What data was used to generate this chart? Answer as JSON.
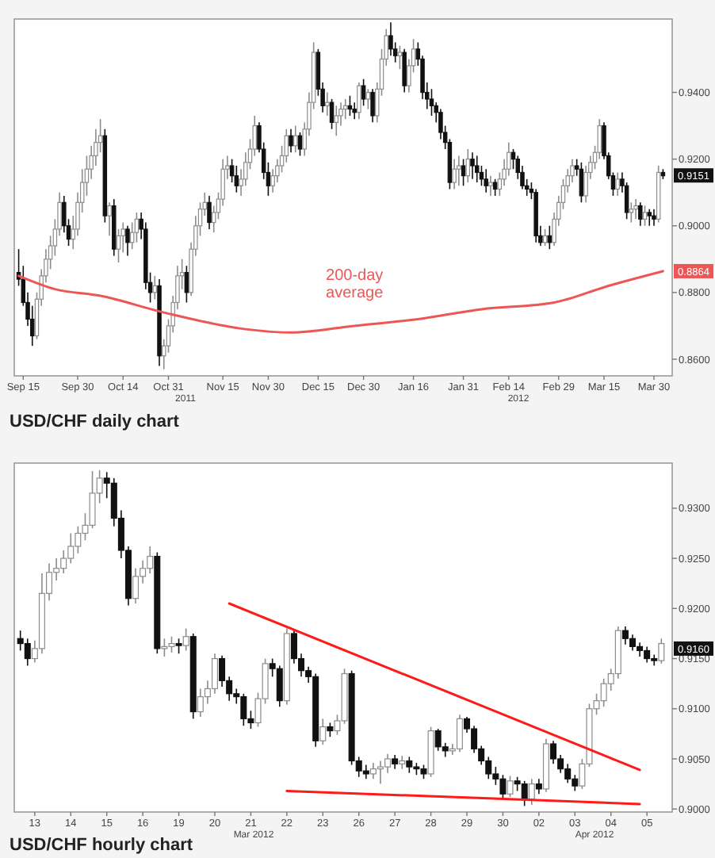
{
  "chart_data": [
    {
      "type": "candlestick",
      "categories": [
        null,
        "Sep 15",
        null,
        null,
        null,
        null,
        null,
        null,
        null,
        null,
        null,
        null,
        null,
        "Sep 30",
        null,
        null,
        null,
        null,
        null,
        null,
        null,
        null,
        null,
        "Oct 14",
        null,
        null,
        null,
        null,
        null,
        null,
        null,
        null,
        null,
        "Oct 31",
        null,
        null,
        null,
        null,
        null,
        null,
        null,
        null,
        null,
        null,
        null,
        "Nov 15",
        null,
        null,
        null,
        null,
        null,
        null,
        null,
        null,
        null,
        "Nov 30",
        null,
        null,
        null,
        null,
        null,
        null,
        null,
        null,
        null,
        null,
        "Dec 15",
        null,
        null,
        null,
        null,
        null,
        null,
        null,
        null,
        null,
        "Dec 30",
        null,
        null,
        null,
        null,
        null,
        null,
        null,
        null,
        null,
        null,
        "Jan 16",
        null,
        null,
        null,
        null,
        null,
        null,
        null,
        null,
        null,
        null,
        "Jan 31",
        null,
        null,
        null,
        null,
        null,
        null,
        null,
        null,
        null,
        "Feb 14",
        null,
        null,
        null,
        null,
        null,
        null,
        null,
        null,
        null,
        null,
        "Feb 29",
        null,
        null,
        null,
        null,
        null,
        null,
        null,
        null,
        null,
        "Mar 15",
        null,
        null,
        null,
        null,
        null,
        null,
        null,
        null,
        null,
        null,
        "Mar 30",
        null,
        null
      ],
      "ohlc": [
        [
          0.886,
          0.893,
          0.882,
          0.884
        ],
        [
          0.884,
          0.888,
          0.876,
          0.877
        ],
        [
          0.877,
          0.88,
          0.87,
          0.872
        ],
        [
          0.872,
          0.876,
          0.864,
          0.867
        ],
        [
          0.867,
          0.88,
          0.866,
          0.878
        ],
        [
          0.878,
          0.887,
          0.876,
          0.885
        ],
        [
          0.885,
          0.893,
          0.883,
          0.89
        ],
        [
          0.89,
          0.897,
          0.887,
          0.894
        ],
        [
          0.894,
          0.902,
          0.891,
          0.899
        ],
        [
          0.899,
          0.91,
          0.897,
          0.907
        ],
        [
          0.907,
          0.909,
          0.898,
          0.9
        ],
        [
          0.9,
          0.902,
          0.894,
          0.896
        ],
        [
          0.896,
          0.903,
          0.893,
          0.899
        ],
        [
          0.899,
          0.91,
          0.897,
          0.907
        ],
        [
          0.907,
          0.917,
          0.904,
          0.913
        ],
        [
          0.913,
          0.921,
          0.909,
          0.917
        ],
        [
          0.917,
          0.924,
          0.914,
          0.921
        ],
        [
          0.921,
          0.929,
          0.918,
          0.925
        ],
        [
          0.925,
          0.932,
          0.922,
          0.927
        ],
        [
          0.927,
          0.929,
          0.901,
          0.903
        ],
        [
          0.903,
          0.907,
          0.897,
          0.906
        ],
        [
          0.906,
          0.908,
          0.891,
          0.893
        ],
        [
          0.893,
          0.899,
          0.889,
          0.897
        ],
        [
          0.897,
          0.901,
          0.892,
          0.899
        ],
        [
          0.899,
          0.9,
          0.891,
          0.895
        ],
        [
          0.895,
          0.901,
          0.893,
          0.898
        ],
        [
          0.898,
          0.904,
          0.895,
          0.902
        ],
        [
          0.902,
          0.904,
          0.896,
          0.899
        ],
        [
          0.899,
          0.901,
          0.881,
          0.883
        ],
        [
          0.883,
          0.886,
          0.877,
          0.88
        ],
        [
          0.88,
          0.885,
          0.878,
          0.882
        ],
        [
          0.882,
          0.884,
          0.858,
          0.861
        ],
        [
          0.861,
          0.866,
          0.857,
          0.864
        ],
        [
          0.864,
          0.872,
          0.862,
          0.87
        ],
        [
          0.87,
          0.879,
          0.868,
          0.877
        ],
        [
          0.877,
          0.888,
          0.875,
          0.885
        ],
        [
          0.885,
          0.89,
          0.881,
          0.886
        ],
        [
          0.886,
          0.888,
          0.877,
          0.88
        ],
        [
          0.88,
          0.895,
          0.879,
          0.893
        ],
        [
          0.893,
          0.903,
          0.891,
          0.9
        ],
        [
          0.9,
          0.907,
          0.897,
          0.905
        ],
        [
          0.905,
          0.91,
          0.903,
          0.907
        ],
        [
          0.907,
          0.909,
          0.899,
          0.901
        ],
        [
          0.901,
          0.906,
          0.898,
          0.904
        ],
        [
          0.904,
          0.91,
          0.902,
          0.908
        ],
        [
          0.908,
          0.92,
          0.906,
          0.917
        ],
        [
          0.917,
          0.921,
          0.914,
          0.918
        ],
        [
          0.918,
          0.92,
          0.913,
          0.915
        ],
        [
          0.915,
          0.918,
          0.91,
          0.912
        ],
        [
          0.912,
          0.917,
          0.909,
          0.914
        ],
        [
          0.914,
          0.922,
          0.912,
          0.919
        ],
        [
          0.919,
          0.926,
          0.917,
          0.923
        ],
        [
          0.923,
          0.933,
          0.921,
          0.93
        ],
        [
          0.93,
          0.931,
          0.922,
          0.923
        ],
        [
          0.923,
          0.925,
          0.914,
          0.916
        ],
        [
          0.916,
          0.919,
          0.909,
          0.912
        ],
        [
          0.912,
          0.917,
          0.91,
          0.915
        ],
        [
          0.915,
          0.92,
          0.913,
          0.918
        ],
        [
          0.918,
          0.924,
          0.916,
          0.921
        ],
        [
          0.921,
          0.929,
          0.919,
          0.927
        ],
        [
          0.927,
          0.929,
          0.922,
          0.924
        ],
        [
          0.924,
          0.93,
          0.922,
          0.927
        ],
        [
          0.927,
          0.928,
          0.921,
          0.923
        ],
        [
          0.923,
          0.931,
          0.921,
          0.929
        ],
        [
          0.929,
          0.94,
          0.927,
          0.937
        ],
        [
          0.937,
          0.955,
          0.935,
          0.952
        ],
        [
          0.952,
          0.953,
          0.939,
          0.941
        ],
        [
          0.941,
          0.943,
          0.934,
          0.936
        ],
        [
          0.936,
          0.94,
          0.933,
          0.937
        ],
        [
          0.937,
          0.938,
          0.929,
          0.931
        ],
        [
          0.931,
          0.936,
          0.927,
          0.933
        ],
        [
          0.933,
          0.937,
          0.93,
          0.935
        ],
        [
          0.935,
          0.938,
          0.932,
          0.936
        ],
        [
          0.936,
          0.939,
          0.933,
          0.935
        ],
        [
          0.935,
          0.937,
          0.932,
          0.934
        ],
        [
          0.934,
          0.943,
          0.932,
          0.942
        ],
        [
          0.942,
          0.944,
          0.936,
          0.938
        ],
        [
          0.938,
          0.941,
          0.935,
          0.94
        ],
        [
          0.94,
          0.941,
          0.931,
          0.933
        ],
        [
          0.933,
          0.943,
          0.931,
          0.941
        ],
        [
          0.941,
          0.953,
          0.939,
          0.95
        ],
        [
          0.95,
          0.959,
          0.948,
          0.957
        ],
        [
          0.957,
          0.961,
          0.951,
          0.953
        ],
        [
          0.953,
          0.955,
          0.949,
          0.951
        ],
        [
          0.951,
          0.954,
          0.947,
          0.952
        ],
        [
          0.952,
          0.953,
          0.94,
          0.942
        ],
        [
          0.942,
          0.95,
          0.94,
          0.948
        ],
        [
          0.948,
          0.956,
          0.946,
          0.953
        ],
        [
          0.953,
          0.955,
          0.948,
          0.95
        ],
        [
          0.95,
          0.951,
          0.938,
          0.94
        ],
        [
          0.94,
          0.943,
          0.935,
          0.938
        ],
        [
          0.938,
          0.941,
          0.933,
          0.936
        ],
        [
          0.936,
          0.937,
          0.931,
          0.934
        ],
        [
          0.934,
          0.935,
          0.926,
          0.928
        ],
        [
          0.928,
          0.93,
          0.923,
          0.925
        ],
        [
          0.925,
          0.926,
          0.911,
          0.913
        ],
        [
          0.913,
          0.92,
          0.911,
          0.917
        ],
        [
          0.917,
          0.921,
          0.912,
          0.918
        ],
        [
          0.918,
          0.92,
          0.912,
          0.915
        ],
        [
          0.915,
          0.923,
          0.913,
          0.92
        ],
        [
          0.92,
          0.922,
          0.914,
          0.918
        ],
        [
          0.918,
          0.921,
          0.913,
          0.916
        ],
        [
          0.916,
          0.918,
          0.912,
          0.914
        ],
        [
          0.914,
          0.917,
          0.91,
          0.912
        ],
        [
          0.912,
          0.915,
          0.909,
          0.913
        ],
        [
          0.913,
          0.914,
          0.909,
          0.911
        ],
        [
          0.911,
          0.916,
          0.909,
          0.914
        ],
        [
          0.914,
          0.92,
          0.912,
          0.917
        ],
        [
          0.917,
          0.925,
          0.915,
          0.922
        ],
        [
          0.922,
          0.923,
          0.917,
          0.92
        ],
        [
          0.92,
          0.921,
          0.914,
          0.916
        ],
        [
          0.916,
          0.918,
          0.911,
          0.912
        ],
        [
          0.912,
          0.914,
          0.909,
          0.911
        ],
        [
          0.911,
          0.913,
          0.908,
          0.91
        ],
        [
          0.91,
          0.911,
          0.895,
          0.897
        ],
        [
          0.897,
          0.9,
          0.894,
          0.895
        ],
        [
          0.895,
          0.899,
          0.894,
          0.897
        ],
        [
          0.897,
          0.9,
          0.893,
          0.895
        ],
        [
          0.895,
          0.904,
          0.894,
          0.902
        ],
        [
          0.902,
          0.909,
          0.9,
          0.907
        ],
        [
          0.907,
          0.914,
          0.905,
          0.912
        ],
        [
          0.912,
          0.917,
          0.91,
          0.915
        ],
        [
          0.915,
          0.92,
          0.913,
          0.918
        ],
        [
          0.918,
          0.92,
          0.915,
          0.917
        ],
        [
          0.917,
          0.919,
          0.907,
          0.909
        ],
        [
          0.909,
          0.918,
          0.907,
          0.916
        ],
        [
          0.916,
          0.921,
          0.914,
          0.919
        ],
        [
          0.919,
          0.924,
          0.917,
          0.922
        ],
        [
          0.922,
          0.932,
          0.92,
          0.93
        ],
        [
          0.93,
          0.931,
          0.92,
          0.921
        ],
        [
          0.921,
          0.922,
          0.914,
          0.915
        ],
        [
          0.915,
          0.916,
          0.909,
          0.911
        ],
        [
          0.911,
          0.916,
          0.909,
          0.914
        ],
        [
          0.914,
          0.916,
          0.91,
          0.912
        ],
        [
          0.912,
          0.913,
          0.902,
          0.904
        ],
        [
          0.904,
          0.907,
          0.901,
          0.905
        ],
        [
          0.905,
          0.908,
          0.902,
          0.906
        ],
        [
          0.906,
          0.907,
          0.9,
          0.902
        ],
        [
          0.902,
          0.906,
          0.9,
          0.904
        ],
        [
          0.904,
          0.905,
          0.9,
          0.903
        ],
        [
          0.903,
          0.905,
          0.9,
          0.902
        ],
        [
          0.902,
          0.918,
          0.901,
          0.916
        ],
        [
          0.916,
          0.917,
          0.914,
          0.915
        ]
      ],
      "series": [
        {
          "type": "line",
          "name": "200-day average",
          "color": "#ee5555",
          "values": [
            0.885,
            null,
            null,
            null,
            null,
            null,
            null,
            null,
            0.881,
            null,
            null,
            null,
            null,
            null,
            null,
            null,
            null,
            null,
            0.879,
            null,
            null,
            null,
            null,
            null,
            null,
            null,
            null,
            null,
            null,
            null,
            null,
            null,
            0.874,
            null,
            null,
            null,
            null,
            null,
            null,
            null,
            null,
            null,
            null,
            null,
            null,
            null,
            null,
            null,
            null,
            null,
            0.869,
            null,
            null,
            null,
            null,
            null,
            null,
            null,
            null,
            null,
            0.868,
            null,
            null,
            null,
            null,
            null,
            null,
            null,
            null,
            null,
            null,
            null,
            null,
            null,
            0.87,
            null,
            null,
            null,
            null,
            null,
            null,
            null,
            null,
            null,
            null,
            null,
            null,
            null,
            0.872,
            null,
            null,
            null,
            null,
            null,
            null,
            null,
            null,
            null,
            null,
            null,
            null,
            null,
            0.875,
            null,
            null,
            null,
            null,
            null,
            null,
            null,
            null,
            null,
            null,
            null,
            null,
            null,
            null,
            null,
            0.877,
            null,
            null,
            null,
            null,
            null,
            null,
            null,
            null,
            null,
            null,
            null,
            0.882,
            null,
            null,
            null,
            null,
            null,
            null,
            null,
            null,
            null,
            null,
            null,
            0.8864
          ],
          "value_labels": [
            null,
            null,
            null,
            null,
            null,
            null,
            null,
            null,
            null,
            null,
            null,
            null,
            null,
            null,
            null,
            null,
            null,
            null,
            null,
            null,
            null,
            null,
            null,
            null,
            null,
            null,
            null,
            null,
            null,
            null,
            null,
            null,
            null,
            null,
            null,
            null,
            null,
            null,
            null,
            null,
            null,
            null,
            null,
            null,
            null,
            null,
            null,
            null,
            null,
            null,
            null,
            null,
            null,
            null,
            null,
            null,
            null,
            null,
            null,
            null,
            null,
            null,
            null,
            null,
            null,
            null,
            null,
            null,
            null,
            null,
            null,
            null,
            null,
            null,
            null,
            null,
            null,
            null,
            null,
            null,
            null,
            null,
            null,
            null,
            null,
            null,
            null,
            null,
            null,
            null,
            null,
            null,
            null,
            null,
            null,
            null,
            null,
            null,
            null,
            null,
            null,
            null,
            null,
            null,
            null,
            null,
            null,
            null,
            null,
            null,
            null,
            null,
            null,
            null,
            null,
            null,
            null,
            null,
            null,
            null,
            null,
            null,
            null,
            null,
            null,
            null,
            null,
            null,
            null,
            null,
            null,
            null,
            null,
            null,
            null,
            null,
            null,
            null,
            null,
            null,
            null,
            null,
            "0.8864"
          ]
        }
      ],
      "ylim": [
        0.855,
        0.962
      ],
      "yticks": [
        {
          "value": 0.86,
          "label": "0.8600"
        },
        {
          "value": 0.88,
          "label": "0.8800"
        },
        {
          "value": 0.9,
          "label": "0.9000"
        },
        {
          "value": 0.92,
          "label": "0.9200"
        },
        {
          "value": 0.94,
          "label": "0.9400"
        }
      ],
      "annotations": [
        "2011",
        "2012",
        "USD/CHF daily chart",
        {
          "text": "0.9151",
          "y": 0.9151
        }
      ]
    },
    {
      "type": "candlestick",
      "categories": [
        null,
        null,
        "13",
        null,
        null,
        null,
        null,
        "14",
        null,
        null,
        null,
        null,
        "15",
        null,
        null,
        null,
        null,
        "16",
        null,
        null,
        null,
        null,
        "19",
        null,
        null,
        null,
        null,
        "20",
        null,
        null,
        null,
        null,
        "21",
        null,
        null,
        null,
        null,
        "22",
        null,
        null,
        null,
        null,
        "23",
        null,
        null,
        null,
        null,
        "26",
        null,
        null,
        null,
        null,
        "27",
        null,
        null,
        null,
        null,
        "28",
        null,
        null,
        null,
        null,
        "29",
        null,
        null,
        null,
        null,
        "30",
        null,
        null,
        null,
        null,
        "02",
        null,
        null,
        null,
        null,
        "03",
        null,
        null,
        null,
        null,
        "04",
        null,
        null,
        null,
        null,
        "05",
        null,
        null
      ],
      "ohlc": [
        [
          0.917,
          0.9178,
          0.9158,
          0.9165
        ],
        [
          0.9165,
          0.917,
          0.9143,
          0.915
        ],
        [
          0.915,
          0.9168,
          0.9146,
          0.916
        ],
        [
          0.916,
          0.9235,
          0.9155,
          0.9215
        ],
        [
          0.9215,
          0.9245,
          0.9208,
          0.9236
        ],
        [
          0.9236,
          0.925,
          0.9228,
          0.924
        ],
        [
          0.924,
          0.9258,
          0.9235,
          0.925
        ],
        [
          0.925,
          0.9275,
          0.9245,
          0.9262
        ],
        [
          0.9262,
          0.9282,
          0.9255,
          0.9275
        ],
        [
          0.9275,
          0.9295,
          0.9268,
          0.9283
        ],
        [
          0.9283,
          0.9337,
          0.928,
          0.9315
        ],
        [
          0.9315,
          0.9338,
          0.9305,
          0.933
        ],
        [
          0.933,
          0.9336,
          0.931,
          0.9325
        ],
        [
          0.9325,
          0.933,
          0.9282,
          0.929
        ],
        [
          0.929,
          0.9298,
          0.925,
          0.9258
        ],
        [
          0.9258,
          0.9262,
          0.9203,
          0.921
        ],
        [
          0.921,
          0.924,
          0.9205,
          0.9232
        ],
        [
          0.9232,
          0.9248,
          0.9225,
          0.924
        ],
        [
          0.924,
          0.9262,
          0.9235,
          0.9252
        ],
        [
          0.9252,
          0.9256,
          0.9155,
          0.916
        ],
        [
          0.916,
          0.917,
          0.9152,
          0.9162
        ],
        [
          0.9162,
          0.9172,
          0.9156,
          0.9165
        ],
        [
          0.9165,
          0.917,
          0.9155,
          0.9163
        ],
        [
          0.9163,
          0.918,
          0.9158,
          0.9172
        ],
        [
          0.9172,
          0.9175,
          0.909,
          0.9097
        ],
        [
          0.9097,
          0.912,
          0.9092,
          0.9112
        ],
        [
          0.9112,
          0.9128,
          0.9105,
          0.912
        ],
        [
          0.912,
          0.9155,
          0.9115,
          0.915
        ],
        [
          0.915,
          0.9153,
          0.9122,
          0.9128
        ],
        [
          0.9128,
          0.9132,
          0.9108,
          0.9115
        ],
        [
          0.9115,
          0.912,
          0.9105,
          0.9112
        ],
        [
          0.9112,
          0.9115,
          0.9083,
          0.909
        ],
        [
          0.909,
          0.9098,
          0.908,
          0.9086
        ],
        [
          0.9086,
          0.9116,
          0.9082,
          0.911
        ],
        [
          0.911,
          0.915,
          0.9105,
          0.9145
        ],
        [
          0.9145,
          0.915,
          0.9132,
          0.914
        ],
        [
          0.914,
          0.9143,
          0.9102,
          0.9108
        ],
        [
          0.9108,
          0.918,
          0.9104,
          0.9175
        ],
        [
          0.9175,
          0.9178,
          0.9145,
          0.915
        ],
        [
          0.915,
          0.9155,
          0.9132,
          0.9138
        ],
        [
          0.9138,
          0.9142,
          0.9126,
          0.9132
        ],
        [
          0.9132,
          0.9135,
          0.9062,
          0.9068
        ],
        [
          0.9068,
          0.909,
          0.9064,
          0.9082
        ],
        [
          0.9082,
          0.9086,
          0.9072,
          0.9078
        ],
        [
          0.9078,
          0.9094,
          0.9074,
          0.9088
        ],
        [
          0.9088,
          0.914,
          0.9085,
          0.9135
        ],
        [
          0.9135,
          0.9138,
          0.9044,
          0.9048
        ],
        [
          0.9048,
          0.9052,
          0.9032,
          0.9038
        ],
        [
          0.9038,
          0.9044,
          0.903,
          0.9035
        ],
        [
          0.9035,
          0.9046,
          0.903,
          0.904
        ],
        [
          0.904,
          0.9048,
          0.9025,
          0.9042
        ],
        [
          0.9042,
          0.9055,
          0.9036,
          0.905
        ],
        [
          0.905,
          0.9054,
          0.904,
          0.9045
        ],
        [
          0.9045,
          0.9053,
          0.904,
          0.9048
        ],
        [
          0.9048,
          0.9052,
          0.9036,
          0.9042
        ],
        [
          0.9042,
          0.9046,
          0.9034,
          0.904
        ],
        [
          0.904,
          0.9044,
          0.903,
          0.9035
        ],
        [
          0.9035,
          0.9082,
          0.9032,
          0.9078
        ],
        [
          0.9078,
          0.908,
          0.9058,
          0.9062
        ],
        [
          0.9062,
          0.9066,
          0.9052,
          0.9058
        ],
        [
          0.9058,
          0.9065,
          0.9054,
          0.906
        ],
        [
          0.906,
          0.9094,
          0.9057,
          0.909
        ],
        [
          0.909,
          0.9092,
          0.9076,
          0.908
        ],
        [
          0.908,
          0.9083,
          0.9056,
          0.906
        ],
        [
          0.906,
          0.9063,
          0.9044,
          0.9048
        ],
        [
          0.9048,
          0.9052,
          0.903,
          0.9035
        ],
        [
          0.9035,
          0.9042,
          0.9024,
          0.903
        ],
        [
          0.903,
          0.9034,
          0.901,
          0.9015
        ],
        [
          0.9015,
          0.9033,
          0.9012,
          0.9028
        ],
        [
          0.9028,
          0.9032,
          0.9018,
          0.9025
        ],
        [
          0.9025,
          0.9028,
          0.9003,
          0.901
        ],
        [
          0.901,
          0.903,
          0.9004,
          0.9025
        ],
        [
          0.9025,
          0.903,
          0.9015,
          0.902
        ],
        [
          0.902,
          0.907,
          0.9017,
          0.9065
        ],
        [
          0.9065,
          0.9068,
          0.9045,
          0.905
        ],
        [
          0.905,
          0.9054,
          0.9036,
          0.904
        ],
        [
          0.904,
          0.9045,
          0.9026,
          0.903
        ],
        [
          0.903,
          0.9034,
          0.9018,
          0.9023
        ],
        [
          0.9023,
          0.905,
          0.902,
          0.9045
        ],
        [
          0.9045,
          0.9105,
          0.9042,
          0.91
        ],
        [
          0.91,
          0.9115,
          0.9094,
          0.9108
        ],
        [
          0.9108,
          0.913,
          0.9102,
          0.9125
        ],
        [
          0.9125,
          0.914,
          0.9118,
          0.9135
        ],
        [
          0.9135,
          0.9182,
          0.913,
          0.9178
        ],
        [
          0.9178,
          0.9182,
          0.9164,
          0.917
        ],
        [
          0.917,
          0.9174,
          0.9158,
          0.9162
        ],
        [
          0.9162,
          0.9166,
          0.9152,
          0.9158
        ],
        [
          0.9158,
          0.9162,
          0.9146,
          0.915
        ],
        [
          0.915,
          0.9154,
          0.9143,
          0.9148
        ],
        [
          0.9148,
          0.917,
          0.9145,
          0.9165
        ]
      ],
      "series": [
        {
          "type": "line",
          "color": "#ff1a1a",
          "values": [
            null,
            null,
            null,
            null,
            null,
            null,
            null,
            null,
            null,
            null,
            null,
            null,
            null,
            null,
            null,
            null,
            null,
            null,
            null,
            null,
            null,
            null,
            null,
            null,
            null,
            null,
            null,
            null,
            null,
            0.9205,
            null,
            null,
            null,
            null,
            null,
            null,
            null,
            null,
            null,
            null,
            null,
            null,
            null,
            null,
            null,
            null,
            null,
            null,
            null,
            null,
            null,
            null,
            null,
            null,
            null,
            null,
            null,
            null,
            null,
            null,
            null,
            null,
            null,
            null,
            null,
            null,
            null,
            null,
            null,
            null,
            null,
            null,
            null,
            null,
            null,
            null,
            null,
            null,
            null,
            null,
            null,
            null,
            null,
            null,
            null,
            null,
            0.9039,
            null,
            null,
            null
          ]
        },
        {
          "type": "line",
          "color": "#ff1a1a",
          "values": [
            null,
            null,
            null,
            null,
            null,
            null,
            null,
            null,
            null,
            null,
            null,
            null,
            null,
            null,
            null,
            null,
            null,
            null,
            null,
            null,
            null,
            null,
            null,
            null,
            null,
            null,
            null,
            null,
            null,
            null,
            null,
            null,
            null,
            null,
            null,
            null,
            null,
            0.9018,
            null,
            null,
            null,
            null,
            null,
            null,
            null,
            null,
            null,
            null,
            null,
            null,
            null,
            null,
            null,
            null,
            null,
            null,
            null,
            null,
            null,
            null,
            null,
            null,
            null,
            null,
            null,
            null,
            null,
            null,
            null,
            null,
            null,
            null,
            null,
            null,
            null,
            null,
            null,
            null,
            null,
            null,
            null,
            null,
            null,
            null,
            null,
            null,
            0.9005,
            null,
            null,
            null
          ]
        }
      ],
      "ylim": [
        0.8997,
        0.9345
      ],
      "yticks": [
        {
          "value": 0.9,
          "label": "0.9000"
        },
        {
          "value": 0.905,
          "label": "0.9050"
        },
        {
          "value": 0.91,
          "label": "0.9100"
        },
        {
          "value": 0.915,
          "label": "0.9150"
        },
        {
          "value": 0.92,
          "label": "0.9200"
        },
        {
          "value": 0.925,
          "label": "0.9250"
        },
        {
          "value": 0.93,
          "label": "0.9300"
        }
      ],
      "annotations": [
        "Mar 2012",
        "Apr 2012",
        "USD/CHF hourly chart",
        {
          "text": "0.9160",
          "y": 0.916
        }
      ]
    }
  ]
}
